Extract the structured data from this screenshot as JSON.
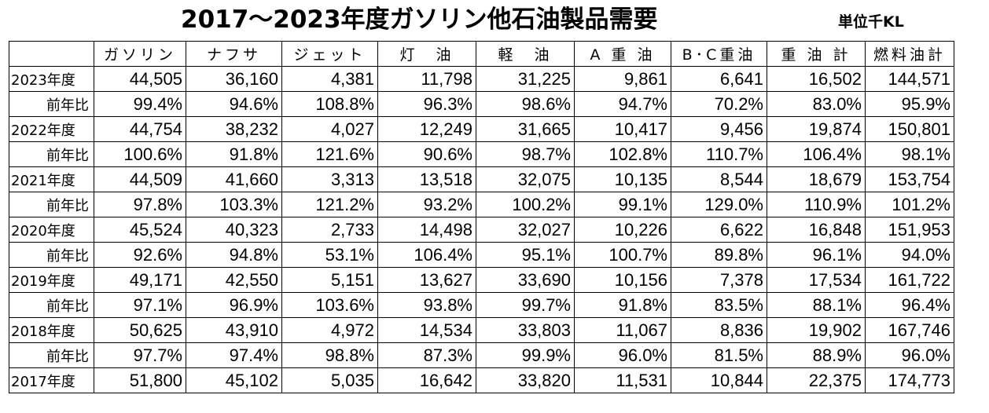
{
  "title": "2017～2023年度ガソリン他石油製品需要",
  "unit": "単位千KL",
  "table": {
    "headers": [
      "",
      "ガソリン",
      "ナフサ",
      "ジェット",
      "灯　油",
      "軽　油",
      "A 重 油",
      "B･C重油",
      "重 油 計",
      "燃料油計"
    ],
    "rows": [
      {
        "label": "2023年度",
        "kind": "year",
        "values": [
          "44,505",
          "36,160",
          "4,381",
          "11,798",
          "31,225",
          "9,861",
          "6,641",
          "16,502",
          "144,571"
        ]
      },
      {
        "label": "前年比",
        "kind": "ratio",
        "values": [
          "99.4%",
          "94.6%",
          "108.8%",
          "96.3%",
          "98.6%",
          "94.7%",
          "70.2%",
          "83.0%",
          "95.9%"
        ]
      },
      {
        "label": "2022年度",
        "kind": "year",
        "values": [
          "44,754",
          "38,232",
          "4,027",
          "12,249",
          "31,665",
          "10,417",
          "9,456",
          "19,874",
          "150,801"
        ]
      },
      {
        "label": "前年比",
        "kind": "ratio",
        "values": [
          "100.6%",
          "91.8%",
          "121.6%",
          "90.6%",
          "98.7%",
          "102.8%",
          "110.7%",
          "106.4%",
          "98.1%"
        ]
      },
      {
        "label": "2021年度",
        "kind": "year",
        "values": [
          "44,509",
          "41,660",
          "3,313",
          "13,518",
          "32,075",
          "10,135",
          "8,544",
          "18,679",
          "153,754"
        ]
      },
      {
        "label": "前年比",
        "kind": "ratio",
        "values": [
          "97.8%",
          "103.3%",
          "121.2%",
          "93.2%",
          "100.2%",
          "99.1%",
          "129.0%",
          "110.9%",
          "101.2%"
        ]
      },
      {
        "label": "2020年度",
        "kind": "year",
        "values": [
          "45,524",
          "40,323",
          "2,733",
          "14,498",
          "32,027",
          "10,226",
          "6,622",
          "16,848",
          "151,953"
        ]
      },
      {
        "label": "前年比",
        "kind": "ratio",
        "values": [
          "92.6%",
          "94.8%",
          "53.1%",
          "106.4%",
          "95.1%",
          "100.7%",
          "89.8%",
          "96.1%",
          "94.0%"
        ]
      },
      {
        "label": "2019年度",
        "kind": "year",
        "values": [
          "49,171",
          "42,550",
          "5,151",
          "13,627",
          "33,690",
          "10,156",
          "7,378",
          "17,534",
          "161,722"
        ]
      },
      {
        "label": "前年比",
        "kind": "ratio",
        "values": [
          "97.1%",
          "96.9%",
          "103.6%",
          "93.8%",
          "99.7%",
          "91.8%",
          "83.5%",
          "88.1%",
          "96.4%"
        ]
      },
      {
        "label": "2018年度",
        "kind": "year",
        "values": [
          "50,625",
          "43,910",
          "4,972",
          "14,534",
          "33,803",
          "11,067",
          "8,836",
          "19,902",
          "167,746"
        ]
      },
      {
        "label": "前年比",
        "kind": "ratio",
        "values": [
          "97.7%",
          "97.4%",
          "98.8%",
          "87.3%",
          "99.9%",
          "96.0%",
          "81.5%",
          "88.9%",
          "96.0%"
        ]
      },
      {
        "label": "2017年度",
        "kind": "year",
        "values": [
          "51,800",
          "45,102",
          "5,035",
          "16,642",
          "33,820",
          "11,531",
          "10,844",
          "22,375",
          "174,773"
        ]
      }
    ]
  }
}
